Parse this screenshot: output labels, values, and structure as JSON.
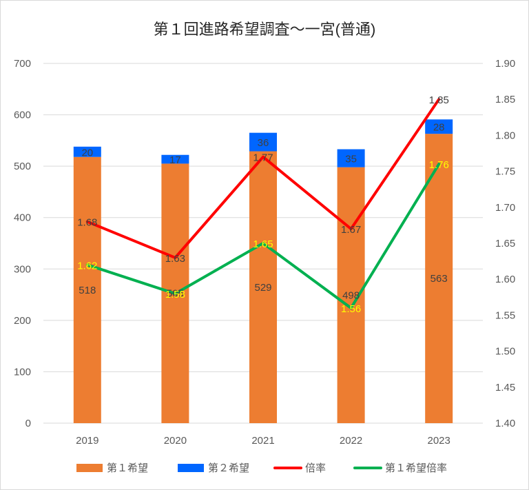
{
  "chart_data": {
    "type": "bar",
    "title": "第１回進路希望調査～一宮(普通)",
    "categories": [
      "2019",
      "2020",
      "2021",
      "2022",
      "2023"
    ],
    "series": [
      {
        "name": "第１希望",
        "kind": "bar",
        "axis": "left",
        "values": [
          518,
          505,
          529,
          498,
          563
        ],
        "color": "#ED7D31",
        "stack": "main"
      },
      {
        "name": "第２希望",
        "kind": "bar",
        "axis": "left",
        "values": [
          20,
          17,
          36,
          35,
          28
        ],
        "color": "#0066FF",
        "stack": "main"
      },
      {
        "name": "倍率",
        "kind": "line",
        "axis": "right",
        "values": [
          1.68,
          1.63,
          1.77,
          1.67,
          1.85
        ],
        "color": "#FF0000",
        "label_color": "#404040"
      },
      {
        "name": "第１希望倍率",
        "kind": "line",
        "axis": "right",
        "values": [
          1.62,
          1.58,
          1.65,
          1.56,
          1.76
        ],
        "color": "#00B050",
        "label_color": "#FFFF00"
      }
    ],
    "y_left": {
      "min": 0,
      "max": 700,
      "ticks": [
        "0",
        "100",
        "200",
        "300",
        "400",
        "500",
        "600",
        "700"
      ]
    },
    "y_right": {
      "min": 1.4,
      "max": 1.9,
      "ticks": [
        "1.40",
        "1.45",
        "1.50",
        "1.55",
        "1.60",
        "1.65",
        "1.70",
        "1.75",
        "1.80",
        "1.85",
        "1.90"
      ]
    },
    "xlabel": "",
    "ylabel": "",
    "grid": true,
    "legend_position": "bottom"
  }
}
